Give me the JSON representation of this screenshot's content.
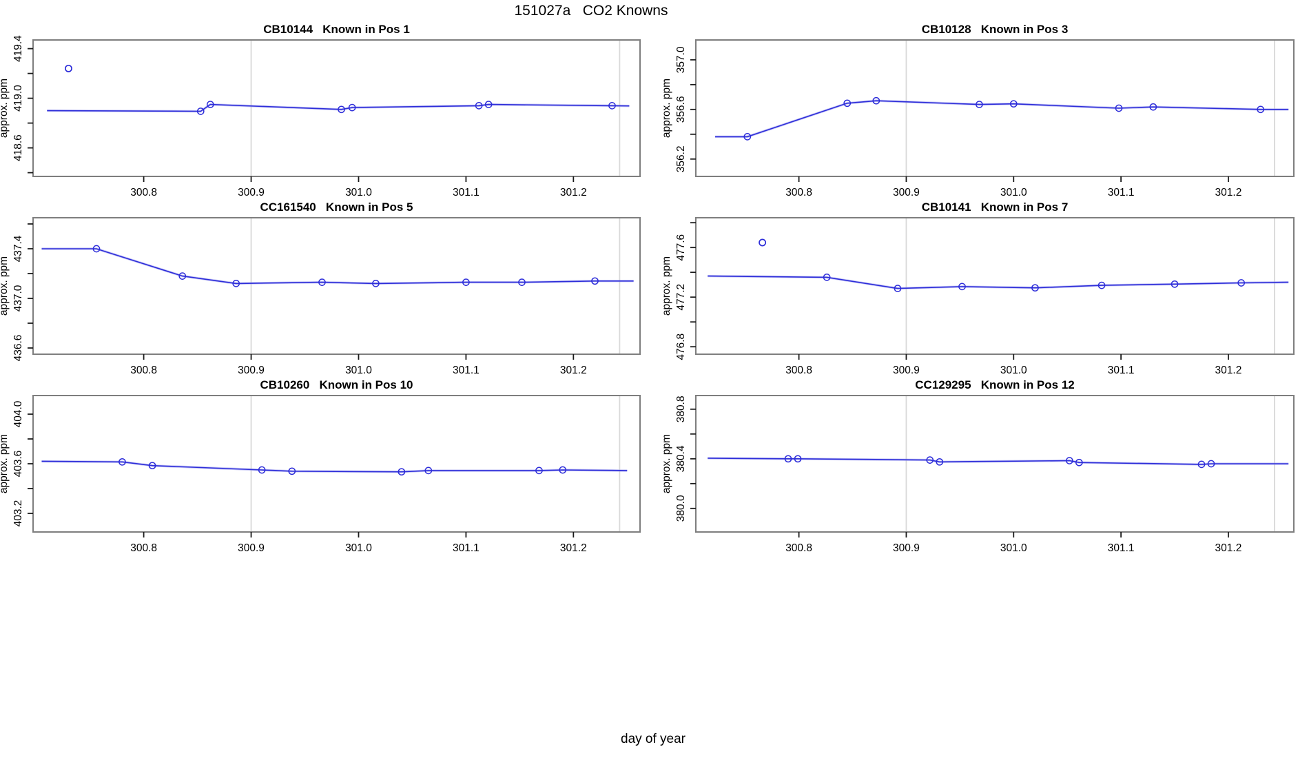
{
  "figure": {
    "title": "151027a   CO2 Knowns",
    "xlabel": "day of year",
    "background": "#ffffff"
  },
  "colors": {
    "line": "#2d2dd9",
    "line_underlay": "#9a9aef",
    "marker": "#2d2dd9",
    "grid": "#d9d9d9",
    "panel_border": "#7e7e7e",
    "tick": "#1a1a1a",
    "text": "#000000"
  },
  "chart_data": [
    {
      "type": "line",
      "title": "CB10144   Known in Pos 1",
      "ylabel": "approx. ppm",
      "xlim": [
        300.697,
        301.262
      ],
      "ylim": [
        418.37,
        419.47
      ],
      "x_ticks": [
        300.8,
        300.9,
        301.0,
        301.1,
        301.2
      ],
      "y_tick_step": 0.2,
      "y_tick_labels": [
        418.6,
        419.0,
        419.4
      ],
      "grid_x": [
        300.9,
        301.243
      ],
      "line": [
        [
          300.71,
          418.9
        ],
        [
          300.853,
          418.895
        ],
        [
          300.862,
          418.95
        ],
        [
          300.984,
          418.91
        ],
        [
          300.994,
          418.925
        ],
        [
          301.112,
          418.94
        ],
        [
          301.121,
          418.95
        ],
        [
          301.236,
          418.94
        ],
        [
          301.252,
          418.938
        ]
      ],
      "markers": [
        [
          300.853,
          418.895
        ],
        [
          300.862,
          418.95
        ],
        [
          300.984,
          418.91
        ],
        [
          300.994,
          418.925
        ],
        [
          301.112,
          418.94
        ],
        [
          301.121,
          418.95
        ],
        [
          301.236,
          418.94
        ]
      ],
      "outliers": [
        [
          300.73,
          419.24
        ]
      ]
    },
    {
      "type": "line",
      "title": "CB10128   Known in Pos 3",
      "ylabel": "approx. ppm",
      "xlim": [
        300.704,
        301.261
      ],
      "ylim": [
        356.06,
        357.16
      ],
      "x_ticks": [
        300.8,
        300.9,
        301.0,
        301.1,
        301.2
      ],
      "y_tick_step": 0.2,
      "y_tick_labels": [
        356.2,
        356.6,
        357.0
      ],
      "grid_x": [
        300.9,
        301.243
      ],
      "line": [
        [
          300.722,
          356.38
        ],
        [
          300.752,
          356.38
        ],
        [
          300.845,
          356.65
        ],
        [
          300.872,
          356.67
        ],
        [
          300.968,
          356.64
        ],
        [
          301.0,
          356.645
        ],
        [
          301.098,
          356.61
        ],
        [
          301.13,
          356.62
        ],
        [
          301.23,
          356.6
        ],
        [
          301.256,
          356.6
        ]
      ],
      "markers": [
        [
          300.752,
          356.38
        ],
        [
          300.845,
          356.65
        ],
        [
          300.872,
          356.67
        ],
        [
          300.968,
          356.64
        ],
        [
          301.0,
          356.645
        ],
        [
          301.098,
          356.61
        ],
        [
          301.13,
          356.62
        ],
        [
          301.23,
          356.6
        ]
      ],
      "outliers": []
    },
    {
      "type": "line",
      "title": "CC161540   Known in Pos 5",
      "ylabel": "approx. ppm",
      "xlim": [
        300.697,
        301.262
      ],
      "ylim": [
        436.55,
        437.65
      ],
      "x_ticks": [
        300.8,
        300.9,
        301.0,
        301.1,
        301.2
      ],
      "y_tick_step": 0.2,
      "y_tick_labels": [
        436.6,
        437.0,
        437.4
      ],
      "grid_x": [
        300.9,
        301.243
      ],
      "line": [
        [
          300.705,
          437.4
        ],
        [
          300.756,
          437.4
        ],
        [
          300.836,
          437.18
        ],
        [
          300.886,
          437.12
        ],
        [
          300.966,
          437.13
        ],
        [
          301.016,
          437.12
        ],
        [
          301.1,
          437.13
        ],
        [
          301.152,
          437.13
        ],
        [
          301.22,
          437.14
        ],
        [
          301.256,
          437.14
        ]
      ],
      "markers": [
        [
          300.756,
          437.4
        ],
        [
          300.836,
          437.18
        ],
        [
          300.886,
          437.12
        ],
        [
          300.966,
          437.13
        ],
        [
          301.016,
          437.12
        ],
        [
          301.1,
          437.13
        ],
        [
          301.152,
          437.13
        ],
        [
          301.22,
          437.14
        ]
      ],
      "outliers": []
    },
    {
      "type": "line",
      "title": "CB10141   Known in Pos 7",
      "ylabel": "approx. ppm",
      "xlim": [
        300.704,
        301.261
      ],
      "ylim": [
        476.74,
        477.84
      ],
      "x_ticks": [
        300.8,
        300.9,
        301.0,
        301.1,
        301.2
      ],
      "y_tick_step": 0.2,
      "y_tick_labels": [
        476.8,
        477.2,
        477.6
      ],
      "grid_x": [
        300.9,
        301.243
      ],
      "line": [
        [
          300.715,
          477.37
        ],
        [
          300.826,
          477.36
        ],
        [
          300.892,
          477.27
        ],
        [
          300.952,
          477.285
        ],
        [
          301.02,
          477.275
        ],
        [
          301.082,
          477.295
        ],
        [
          301.15,
          477.305
        ],
        [
          301.212,
          477.315
        ],
        [
          301.256,
          477.32
        ]
      ],
      "markers": [
        [
          300.826,
          477.36
        ],
        [
          300.892,
          477.27
        ],
        [
          300.952,
          477.285
        ],
        [
          301.02,
          477.275
        ],
        [
          301.082,
          477.295
        ],
        [
          301.15,
          477.305
        ],
        [
          301.212,
          477.315
        ]
      ],
      "outliers": [
        [
          300.766,
          477.64
        ]
      ]
    },
    {
      "type": "line",
      "title": "CB10260   Known in Pos 10",
      "ylabel": "approx. ppm",
      "xlim": [
        300.697,
        301.262
      ],
      "ylim": [
        403.05,
        404.15
      ],
      "x_ticks": [
        300.8,
        300.9,
        301.0,
        301.1,
        301.2
      ],
      "y_tick_step": 0.2,
      "y_tick_labels": [
        403.2,
        403.6,
        404.0
      ],
      "grid_x": [
        300.9,
        301.243
      ],
      "line": [
        [
          300.705,
          403.62
        ],
        [
          300.78,
          403.615
        ],
        [
          300.808,
          403.585
        ],
        [
          300.91,
          403.55
        ],
        [
          300.938,
          403.54
        ],
        [
          301.04,
          403.535
        ],
        [
          301.065,
          403.545
        ],
        [
          301.168,
          403.545
        ],
        [
          301.19,
          403.55
        ],
        [
          301.25,
          403.545
        ]
      ],
      "markers": [
        [
          300.78,
          403.615
        ],
        [
          300.808,
          403.585
        ],
        [
          300.91,
          403.55
        ],
        [
          300.938,
          403.54
        ],
        [
          301.04,
          403.535
        ],
        [
          301.065,
          403.545
        ],
        [
          301.168,
          403.545
        ],
        [
          301.19,
          403.55
        ]
      ],
      "outliers": []
    },
    {
      "type": "line",
      "title": "CC129295   Known in Pos 12",
      "ylabel": "approx. ppm",
      "xlim": [
        300.704,
        301.261
      ],
      "ylim": [
        379.81,
        380.91
      ],
      "x_ticks": [
        300.8,
        300.9,
        301.0,
        301.1,
        301.2
      ],
      "y_tick_step": 0.2,
      "y_tick_labels": [
        380.0,
        380.4,
        380.8
      ],
      "grid_x": [
        300.9,
        301.243
      ],
      "line": [
        [
          300.715,
          380.405
        ],
        [
          300.79,
          380.4
        ],
        [
          300.799,
          380.4
        ],
        [
          300.922,
          380.39
        ],
        [
          300.931,
          380.375
        ],
        [
          301.052,
          380.385
        ],
        [
          301.061,
          380.37
        ],
        [
          301.175,
          380.355
        ],
        [
          301.184,
          380.36
        ],
        [
          301.256,
          380.36
        ]
      ],
      "markers": [
        [
          300.79,
          380.4
        ],
        [
          300.799,
          380.4
        ],
        [
          300.922,
          380.39
        ],
        [
          300.931,
          380.375
        ],
        [
          301.052,
          380.385
        ],
        [
          301.061,
          380.37
        ],
        [
          301.175,
          380.355
        ],
        [
          301.184,
          380.36
        ]
      ],
      "outliers": []
    }
  ]
}
